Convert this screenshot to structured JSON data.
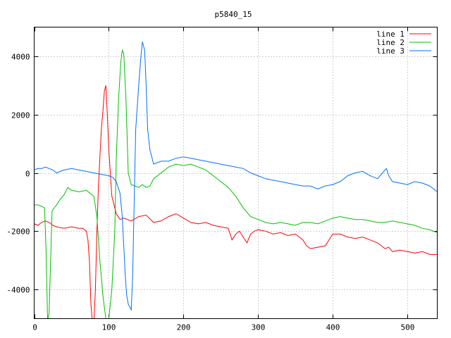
{
  "chart_data": {
    "type": "line",
    "title": "p5840_15",
    "xlabel": "",
    "ylabel": "",
    "xlim": [
      0,
      540
    ],
    "ylim": [
      -5000,
      5000
    ],
    "xticks": [
      0,
      100,
      200,
      300,
      400,
      500
    ],
    "yticks": [
      -4000,
      -2000,
      0,
      2000,
      4000
    ],
    "grid": true,
    "legend": "top-right",
    "series": [
      {
        "name": "line 1",
        "color": "#ff0000",
        "x": [
          0,
          5,
          10,
          15,
          20,
          25,
          30,
          40,
          50,
          60,
          65,
          70,
          72,
          74,
          76,
          78,
          80,
          82,
          84,
          86,
          88,
          90,
          92,
          94,
          96,
          98,
          100,
          104,
          110,
          115,
          120,
          130,
          140,
          150,
          160,
          170,
          180,
          190,
          200,
          210,
          220,
          230,
          240,
          250,
          260,
          265,
          270,
          275,
          280,
          285,
          290,
          295,
          300,
          310,
          320,
          330,
          340,
          350,
          360,
          365,
          370,
          380,
          390,
          400,
          410,
          420,
          430,
          440,
          450,
          460,
          470,
          475,
          480,
          490,
          500,
          510,
          520,
          530,
          540
        ],
        "y": [
          -1750,
          -1800,
          -1700,
          -1650,
          -1700,
          -1800,
          -1850,
          -1900,
          -1850,
          -1900,
          -1900,
          -2000,
          -2300,
          -3000,
          -4500,
          -5100,
          -5100,
          -4000,
          -2000,
          -500,
          500,
          1500,
          2100,
          2800,
          3000,
          2000,
          800,
          -800,
          -1400,
          -1600,
          -1550,
          -1650,
          -1500,
          -1450,
          -1700,
          -1650,
          -1500,
          -1400,
          -1550,
          -1700,
          -1750,
          -1700,
          -1800,
          -1850,
          -1900,
          -2300,
          -2100,
          -2000,
          -2200,
          -2400,
          -2100,
          -2000,
          -1950,
          -2000,
          -2100,
          -2050,
          -2150,
          -2100,
          -2300,
          -2500,
          -2600,
          -2550,
          -2500,
          -2100,
          -2100,
          -2200,
          -2250,
          -2200,
          -2300,
          -2400,
          -2600,
          -2550,
          -2700,
          -2650,
          -2700,
          -2750,
          -2700,
          -2800,
          -2800
        ]
      },
      {
        "name": "line 2",
        "color": "#00c000",
        "x": [
          0,
          5,
          10,
          14,
          16,
          18,
          20,
          24,
          30,
          35,
          40,
          45,
          50,
          60,
          70,
          80,
          84,
          88,
          92,
          96,
          100,
          104,
          108,
          110,
          113,
          116,
          118,
          120,
          123,
          126,
          130,
          135,
          140,
          145,
          150,
          155,
          160,
          170,
          180,
          190,
          200,
          210,
          220,
          230,
          240,
          250,
          260,
          270,
          280,
          290,
          300,
          310,
          320,
          330,
          340,
          350,
          360,
          370,
          380,
          390,
          400,
          410,
          420,
          430,
          440,
          450,
          460,
          470,
          480,
          490,
          500,
          510,
          520,
          530,
          540
        ],
        "y": [
          -1100,
          -1100,
          -1150,
          -1200,
          -2700,
          -5100,
          -4800,
          -1300,
          -1100,
          -900,
          -750,
          -500,
          -600,
          -650,
          -600,
          -800,
          -1500,
          -3000,
          -4200,
          -5000,
          -5000,
          -4000,
          -2000,
          500,
          2500,
          3800,
          4200,
          4100,
          2500,
          0,
          -400,
          -450,
          -500,
          -400,
          -500,
          -450,
          -200,
          0,
          200,
          300,
          250,
          300,
          200,
          100,
          -100,
          -300,
          -500,
          -800,
          -1200,
          -1500,
          -1600,
          -1700,
          -1750,
          -1700,
          -1750,
          -1800,
          -1700,
          -1700,
          -1750,
          -1650,
          -1550,
          -1500,
          -1550,
          -1600,
          -1600,
          -1650,
          -1700,
          -1700,
          -1650,
          -1700,
          -1750,
          -1800,
          -1900,
          -1950,
          -2050
        ]
      },
      {
        "name": "line 3",
        "color": "#0070ff",
        "x": [
          0,
          5,
          10,
          15,
          20,
          25,
          30,
          40,
          50,
          60,
          70,
          80,
          90,
          100,
          105,
          110,
          115,
          118,
          120,
          122,
          124,
          126,
          128,
          130,
          132,
          134,
          136,
          140,
          143,
          145,
          148,
          150,
          152,
          155,
          160,
          165,
          170,
          180,
          190,
          200,
          210,
          220,
          230,
          240,
          250,
          260,
          270,
          280,
          290,
          300,
          310,
          320,
          330,
          340,
          350,
          360,
          370,
          380,
          390,
          400,
          410,
          420,
          430,
          440,
          450,
          460,
          470,
          472,
          475,
          480,
          490,
          500,
          510,
          520,
          530,
          540
        ],
        "y": [
          100,
          150,
          150,
          200,
          150,
          100,
          0,
          100,
          150,
          100,
          50,
          0,
          -50,
          -100,
          -150,
          -300,
          -700,
          -1500,
          -2500,
          -3500,
          -4200,
          -4500,
          -4600,
          -4700,
          -3500,
          -1000,
          1500,
          3000,
          4000,
          4500,
          4200,
          3000,
          1500,
          800,
          300,
          350,
          400,
          400,
          500,
          550,
          500,
          450,
          400,
          350,
          300,
          250,
          200,
          150,
          0,
          -100,
          -200,
          -250,
          -300,
          -350,
          -400,
          -450,
          -450,
          -550,
          -450,
          -400,
          -300,
          -100,
          0,
          50,
          -100,
          -200,
          100,
          150,
          -100,
          -300,
          -350,
          -400,
          -300,
          -350,
          -450,
          -650
        ]
      }
    ]
  }
}
